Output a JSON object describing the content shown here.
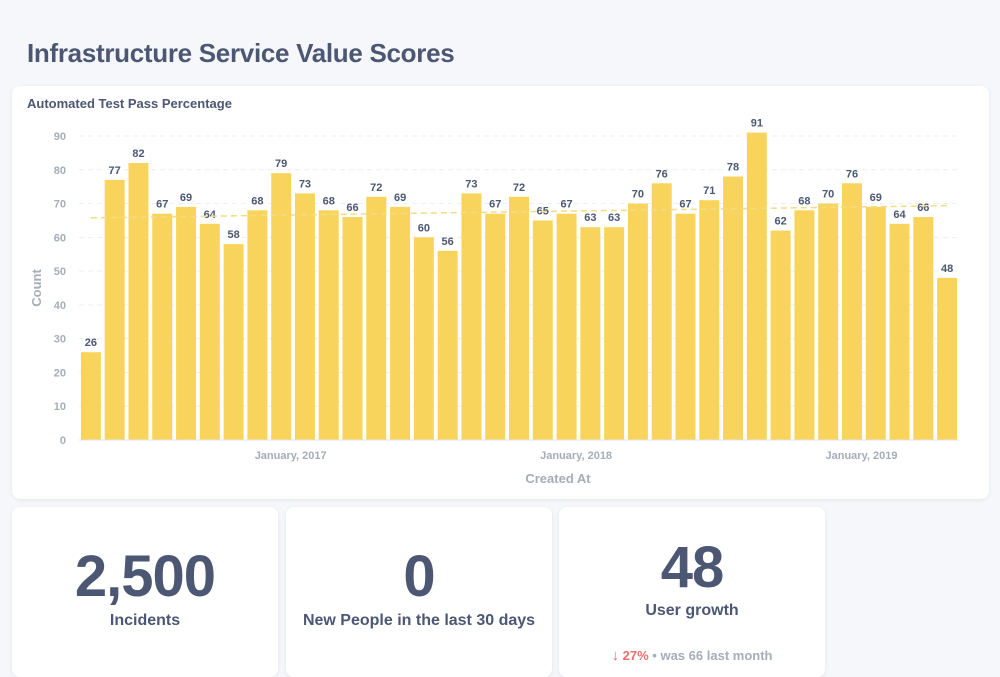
{
  "dashboard": {
    "title": "Infrastructure Service Value Scores"
  },
  "chart_card": {
    "title": "Automated Test Pass Percentage"
  },
  "chart_data": {
    "type": "bar",
    "title": "Automated Test Pass Percentage",
    "xlabel": "Created At",
    "ylabel": "Count",
    "ylim": [
      0,
      90
    ],
    "y_ticks": [
      0,
      10,
      20,
      30,
      40,
      50,
      60,
      70,
      80,
      90
    ],
    "x_tick_labels": [
      "January, 2017",
      "January, 2018",
      "January, 2019"
    ],
    "values": [
      26,
      77,
      82,
      67,
      69,
      64,
      58,
      68,
      79,
      73,
      68,
      66,
      72,
      69,
      60,
      56,
      73,
      67,
      72,
      65,
      67,
      63,
      63,
      70,
      76,
      67,
      71,
      78,
      91,
      62,
      68,
      70,
      76,
      69,
      64,
      66,
      48
    ],
    "bar_color": "#f9d45c",
    "trendline": true,
    "grid": true,
    "data_labels": true
  },
  "scalars": [
    {
      "value": "2,500",
      "label": "Incidents"
    },
    {
      "value": "0",
      "label": "New People in the last 30 days"
    },
    {
      "value": "48",
      "label": "User growth"
    }
  ],
  "trend": {
    "arrow": "↓",
    "percent": "27%",
    "sep": "•",
    "prefix": "was",
    "previous": "66",
    "suffix": "last month"
  },
  "colors": {
    "text": "#4c5773",
    "muted": "#a5adb8",
    "negative": "#ed6e6e",
    "background": "#f5f7fa"
  }
}
